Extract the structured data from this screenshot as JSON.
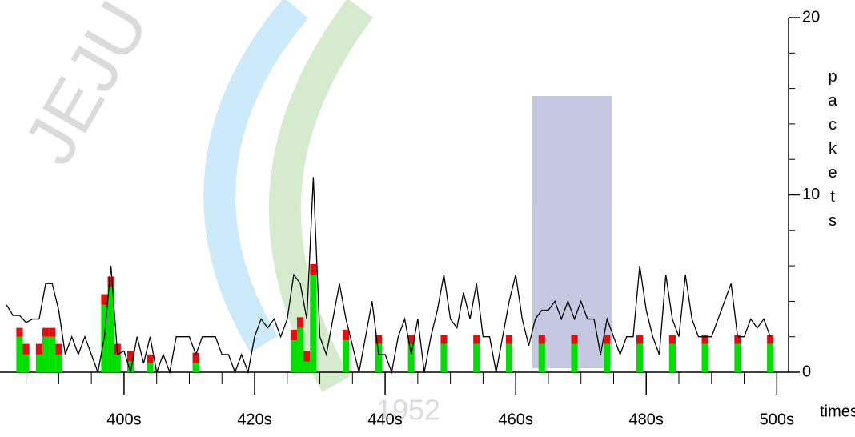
{
  "chart_data": {
    "type": "bar-line",
    "x_label": "times",
    "y_label": "packets",
    "watermark": [
      "JEJU NATIONAL UNIVERSITY",
      "1952"
    ],
    "bar_x": [
      384,
      385,
      387,
      388,
      389,
      390,
      397,
      398,
      399,
      401,
      404,
      411,
      426,
      427,
      428,
      429,
      434,
      439,
      444,
      449,
      454,
      459,
      464,
      469,
      474,
      479,
      484,
      489,
      494,
      499
    ],
    "series": [
      {
        "color": "#00e000",
        "values": [
          2,
          1,
          1,
          2,
          2,
          1,
          3.8,
          4.8,
          1,
          0.6,
          0.5,
          0.5,
          1.8,
          2.5,
          0.6,
          5.5,
          1.8,
          1.6,
          1.6,
          1.6,
          1.6,
          1.6,
          1.6,
          1.6,
          1.6,
          1.6,
          1.6,
          1.6,
          1.6,
          1.6
        ]
      },
      {
        "color": "#e01010",
        "values": [
          0.5,
          0.6,
          0.6,
          0.5,
          0.5,
          0.6,
          0.6,
          0.6,
          0.6,
          0.6,
          0.5,
          0.6,
          0.6,
          0.6,
          0.6,
          0.6,
          0.6,
          0.5,
          0.5,
          0.5,
          0.5,
          0.5,
          0.5,
          0.5,
          0.5,
          0.5,
          0.5,
          0.5,
          0.5,
          0.5
        ]
      }
    ],
    "line": {
      "color": "#000000",
      "x": [
        382,
        383,
        384,
        385,
        386,
        387,
        388,
        389,
        390,
        391,
        392,
        393,
        394,
        395,
        396,
        397,
        398,
        399,
        400,
        401,
        402,
        403,
        404,
        405,
        406,
        407,
        408,
        409,
        410,
        411,
        412,
        413,
        414,
        415,
        416,
        417,
        418,
        419,
        420,
        421,
        422,
        423,
        424,
        425,
        426,
        427,
        428,
        429,
        430,
        431,
        432,
        433,
        434,
        435,
        436,
        437,
        438,
        439,
        440,
        441,
        442,
        443,
        444,
        445,
        446,
        447,
        448,
        449,
        450,
        451,
        452,
        453,
        454,
        455,
        456,
        457,
        458,
        459,
        460,
        461,
        462,
        463,
        464,
        465,
        466,
        467,
        468,
        469,
        470,
        471,
        472,
        473,
        474,
        475,
        476,
        477,
        478,
        479,
        480,
        481,
        482,
        483,
        484,
        485,
        486,
        487,
        488,
        489,
        490,
        491,
        492,
        493,
        494,
        495,
        496,
        497,
        498,
        499
      ],
      "values": [
        3.8,
        3.2,
        3.2,
        2.8,
        3,
        3,
        5,
        5,
        3.5,
        1,
        2,
        1,
        2,
        1,
        0,
        2,
        6,
        1,
        1.2,
        0,
        2,
        0.5,
        2,
        0,
        1,
        0,
        2,
        2,
        2,
        1,
        2,
        2,
        2,
        1,
        1,
        0,
        1,
        0,
        2,
        3,
        2.5,
        3,
        2,
        3,
        5.5,
        5,
        3,
        11,
        2,
        1,
        3,
        5,
        3,
        1.5,
        0,
        2,
        4,
        1,
        1,
        0,
        2,
        3,
        1,
        3,
        0,
        2,
        3.5,
        5.5,
        3,
        2.5,
        4.5,
        3,
        5,
        2,
        2,
        0,
        2,
        4,
        5.5,
        3,
        1.5,
        3,
        3.5,
        3.5,
        4,
        3,
        4,
        3,
        4,
        3,
        3,
        1,
        3,
        2,
        1,
        2,
        2,
        6,
        3.5,
        2,
        1,
        5.5,
        3,
        2,
        5.5,
        3,
        2,
        2,
        2,
        3,
        4,
        5,
        2,
        2,
        3,
        2.5,
        3,
        2
      ]
    },
    "xlim": [
      381,
      501.8
    ],
    "xticks": [
      {
        "value": 400,
        "label": "400s"
      },
      {
        "value": 420,
        "label": "420s"
      },
      {
        "value": 440,
        "label": "440s"
      },
      {
        "value": 460,
        "label": "460s"
      },
      {
        "value": 480,
        "label": "480s"
      },
      {
        "value": 500,
        "label": "500s"
      }
    ],
    "xminorticks": [
      385,
      390,
      395,
      405,
      410,
      415,
      425,
      430,
      435,
      445,
      450,
      455,
      465,
      470,
      475,
      485,
      490,
      495
    ],
    "ylim": [
      0,
      20
    ],
    "yticks": [
      0,
      10,
      20
    ],
    "yminorticks": [
      2,
      4,
      6,
      8,
      12,
      14,
      16,
      18
    ]
  }
}
